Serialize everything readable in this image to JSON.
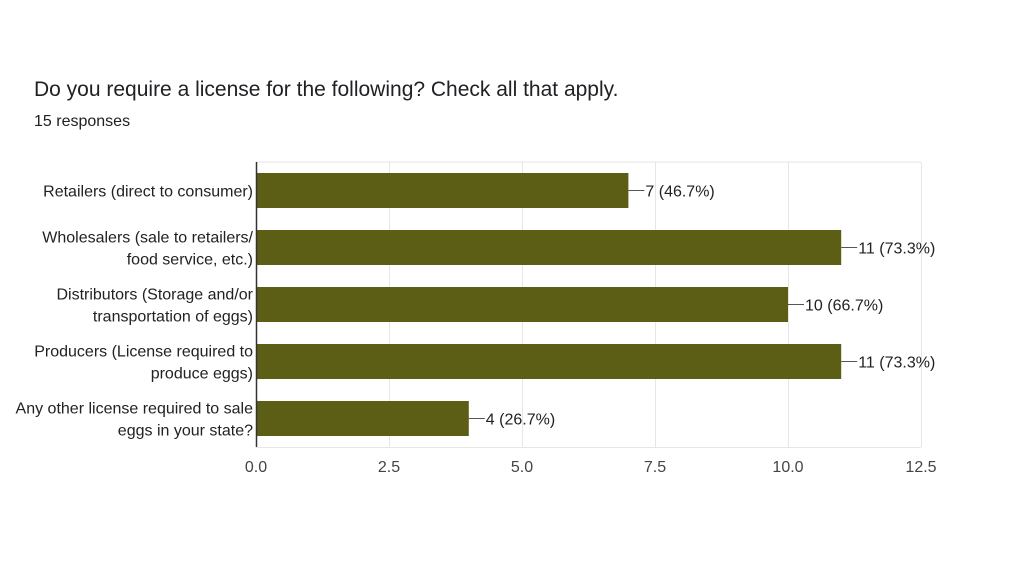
{
  "question": {
    "title": "Do you require a license for the following? Check all that apply.",
    "response_count": "15 responses"
  },
  "colors": {
    "bar": "#5b5e14",
    "grid": "#e6e6e6",
    "axis": "#333333",
    "label_text": "#222222",
    "tick_text": "#444444"
  },
  "chart_data": {
    "type": "bar",
    "orientation": "horizontal",
    "categories": [
      [
        "Retailers (direct to consumer)"
      ],
      [
        "Wholesalers (sale to retailers/",
        "food service, etc.)"
      ],
      [
        "Distributors (Storage and/or",
        "transportation of eggs)"
      ],
      [
        "Producers (License required to",
        "produce eggs)"
      ],
      [
        "Any other license required to sale",
        "eggs in your state?"
      ]
    ],
    "values": [
      7,
      11,
      10,
      11,
      4
    ],
    "data_labels": [
      "7 (46.7%)",
      "11 (73.3%)",
      "10 (66.7%)",
      "11 (73.3%)",
      "4 (26.7%)"
    ],
    "xlim": [
      0,
      12.5
    ],
    "xticks": [
      0,
      2.5,
      5,
      7.5,
      10,
      12.5
    ],
    "xtick_labels": [
      "0.0",
      "2.5",
      "5.0",
      "7.5",
      "10.0",
      "12.5"
    ],
    "grid": true,
    "legend": "none"
  }
}
